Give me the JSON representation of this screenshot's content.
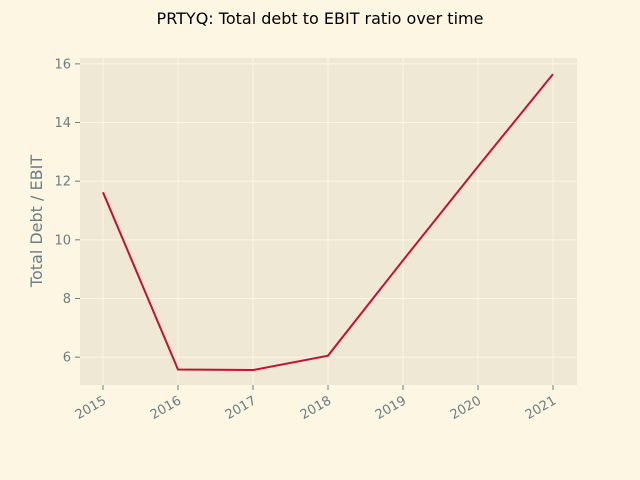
{
  "chart_data": {
    "type": "line",
    "title": "PRTYQ: Total debt to EBIT ratio over time",
    "xlabel": "",
    "ylabel": "Total Debt / EBIT",
    "categories": [
      "2015",
      "2016",
      "2017",
      "2018",
      "2019",
      "2020",
      "2021"
    ],
    "series": [
      {
        "values": [
          11.62,
          5.58,
          5.56,
          6.05,
          9.3,
          12.5,
          15.65
        ],
        "color": "#c8102e"
      }
    ],
    "y_ticks": [
      6,
      8,
      10,
      12,
      14,
      16
    ],
    "ylim": [
      5.05,
      16.2
    ],
    "grid": true,
    "legend": "none",
    "colors": {
      "figure_background": "#fdf6e3",
      "plot_background": "#eee8d5",
      "grid": "#fdf6e3",
      "tick_text": "#6b7d84"
    }
  }
}
